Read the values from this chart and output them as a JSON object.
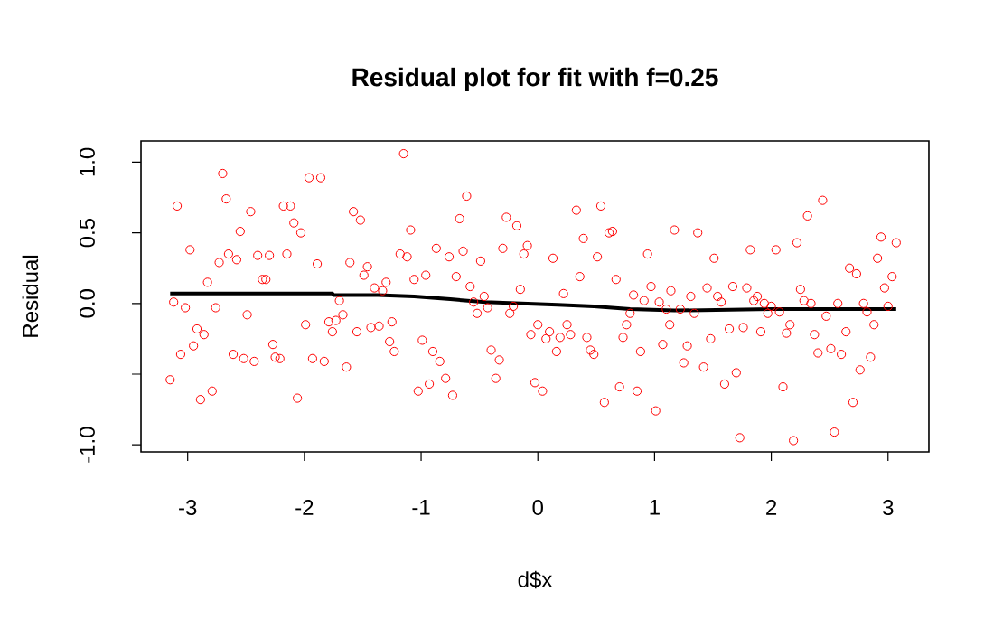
{
  "chart_data": {
    "type": "scatter",
    "title": "Residual plot for fit with f=0.25",
    "xlabel": "d$x",
    "ylabel": "Residual",
    "xlim": [
      -3.4,
      3.35
    ],
    "ylim": [
      -1.05,
      1.15
    ],
    "xticks": [
      -3,
      -2,
      -1,
      0,
      1,
      2,
      3
    ],
    "yticks": [
      {
        "value": -1,
        "label": "-1.0"
      },
      {
        "value": -0.5,
        "label": null
      },
      {
        "value": 0,
        "label": "0.0"
      },
      {
        "value": 0.5,
        "label": "0.5"
      },
      {
        "value": 1,
        "label": "1.0"
      }
    ],
    "series": [
      {
        "color": "#ff0000",
        "marker": "circle",
        "x": [
          -2.7,
          -3.09,
          -2.67,
          -2.46,
          -2.55,
          -2.98,
          -2.65,
          -2.73,
          -2.58,
          -2.4,
          -2.3,
          -2.15,
          -2.83,
          -2.36,
          -2.33,
          -3.12,
          -3.02,
          -2.76,
          -2.49,
          -2.92,
          -2.86,
          -2.95,
          -3.06,
          -2.61,
          -2.52,
          -2.43,
          -3.15,
          -2.89,
          -2.79,
          -2.27,
          -2.25,
          -2.21,
          -2.06,
          -1.99,
          -1.93,
          -1.83,
          -1.96,
          -1.86,
          -2.18,
          -2.12,
          -2.09,
          -2.03,
          -1.89,
          -1.61,
          -1.58,
          -1.52,
          -1.46,
          -1.49,
          -1.4,
          -1.33,
          -1.3,
          -1.7,
          -1.79,
          -1.76,
          -1.73,
          -1.67,
          -1.55,
          -1.43,
          -1.36,
          -1.25,
          -1.27,
          -1.23,
          -1.64,
          -1.15,
          -1.09,
          -1.18,
          -1.12,
          -1.06,
          -0.96,
          -0.87,
          -0.76,
          -0.64,
          -0.67,
          -0.61,
          -0.7,
          -0.58,
          -0.49,
          -0.46,
          -0.55,
          -0.52,
          -0.43,
          -0.99,
          -0.9,
          -0.84,
          -0.79,
          -0.93,
          -1.025,
          -0.73,
          -0.4,
          -0.33,
          -0.36,
          -0.3,
          -0.27,
          -0.18,
          -0.09,
          -0.12,
          -0.15,
          -0.21,
          -0.24,
          -0.06,
          0.0,
          0.07,
          0.1,
          0.13,
          0.19,
          0.16,
          -0.025,
          0.04,
          0.22,
          0.25,
          0.28,
          0.33,
          0.39,
          0.36,
          0.42,
          0.45,
          0.48,
          0.51,
          0.54,
          0.61,
          0.64,
          0.67,
          0.57,
          0.7,
          0.73,
          0.76,
          0.79,
          0.82,
          0.85,
          0.88,
          0.91,
          0.94,
          0.97,
          1.01,
          1.04,
          1.07,
          1.1,
          1.13,
          1.14,
          1.17,
          1.37,
          1.25,
          1.28,
          1.22,
          1.31,
          1.34,
          1.42,
          1.45,
          1.48,
          1.51,
          1.54,
          1.57,
          1.6,
          1.64,
          1.67,
          1.7,
          1.73,
          1.76,
          1.79,
          1.82,
          1.85,
          1.88,
          1.91,
          1.94,
          1.97,
          2.0,
          2.04,
          2.07,
          2.1,
          2.13,
          2.16,
          2.19,
          2.22,
          2.25,
          2.28,
          2.31,
          2.34,
          2.37,
          2.4,
          2.44,
          2.47,
          2.51,
          2.54,
          2.57,
          2.6,
          2.64,
          2.67,
          2.7,
          2.73,
          2.76,
          2.79,
          2.82,
          2.85,
          2.88,
          2.91,
          2.94,
          2.97,
          3.0,
          3.035,
          3.07
        ],
        "values": [
          0.92,
          0.69,
          0.74,
          0.65,
          0.51,
          0.38,
          0.35,
          0.29,
          0.31,
          0.34,
          0.34,
          0.35,
          0.15,
          0.17,
          0.17,
          0.01,
          -0.03,
          -0.03,
          -0.08,
          -0.18,
          -0.22,
          -0.3,
          -0.36,
          -0.36,
          -0.39,
          -0.41,
          -0.54,
          -0.68,
          -0.62,
          -0.29,
          -0.38,
          -0.39,
          -0.67,
          -0.15,
          -0.39,
          -0.41,
          0.89,
          0.89,
          0.69,
          0.69,
          0.57,
          0.5,
          0.28,
          0.29,
          0.65,
          0.59,
          0.26,
          0.2,
          0.11,
          0.09,
          0.15,
          0.02,
          -0.13,
          -0.2,
          -0.12,
          -0.08,
          -0.2,
          -0.17,
          -0.16,
          -0.13,
          -0.27,
          -0.34,
          -0.45,
          1.06,
          0.52,
          0.35,
          0.33,
          0.17,
          0.2,
          0.39,
          0.33,
          0.37,
          0.6,
          0.76,
          0.19,
          0.12,
          0.3,
          0.05,
          0.01,
          -0.07,
          -0.03,
          -0.26,
          -0.34,
          -0.41,
          -0.53,
          -0.57,
          -0.62,
          -0.65,
          -0.33,
          -0.4,
          -0.53,
          0.39,
          0.61,
          0.55,
          0.41,
          0.35,
          0.1,
          -0.02,
          -0.07,
          -0.22,
          -0.15,
          -0.25,
          -0.2,
          0.32,
          -0.24,
          -0.34,
          -0.56,
          -0.62,
          0.07,
          -0.15,
          -0.22,
          0.66,
          0.46,
          0.19,
          -0.24,
          -0.33,
          -0.36,
          0.33,
          0.69,
          0.5,
          0.51,
          0.17,
          -0.7,
          -0.59,
          -0.24,
          -0.15,
          -0.07,
          0.06,
          -0.62,
          -0.34,
          0.02,
          0.35,
          0.12,
          -0.76,
          0.01,
          -0.29,
          -0.04,
          -0.15,
          0.09,
          0.52,
          0.5,
          -0.42,
          -0.3,
          -0.04,
          0.05,
          -0.07,
          -0.45,
          0.11,
          -0.25,
          0.32,
          0.05,
          0.01,
          -0.57,
          -0.18,
          0.12,
          -0.49,
          -0.95,
          -0.17,
          0.11,
          0.38,
          0.02,
          0.05,
          -0.2,
          0.0,
          -0.07,
          -0.02,
          0.38,
          -0.06,
          -0.59,
          -0.21,
          -0.15,
          -0.97,
          0.43,
          0.1,
          0.02,
          0.62,
          0.0,
          -0.22,
          -0.35,
          0.73,
          -0.09,
          -0.32,
          -0.91,
          0.0,
          -0.36,
          -0.2,
          0.25,
          -0.7,
          0.21,
          -0.47,
          0.0,
          -0.06,
          -0.38,
          -0.15,
          0.32,
          0.47,
          0.11,
          -0.02,
          0.19,
          0.43
        ]
      },
      {
        "type": "line",
        "color": "#000000",
        "marker": "none",
        "x": [
          -3.15,
          -1.76,
          -1.75,
          -1.37,
          -1.06,
          -0.75,
          -0.45,
          -0.14,
          0.17,
          0.48,
          0.79,
          1.17,
          2.0,
          3.07
        ],
        "values": [
          0.07,
          0.07,
          0.06,
          0.06,
          0.05,
          0.03,
          0.01,
          0.0,
          -0.01,
          -0.02,
          -0.04,
          -0.05,
          -0.04,
          -0.04
        ]
      }
    ]
  }
}
